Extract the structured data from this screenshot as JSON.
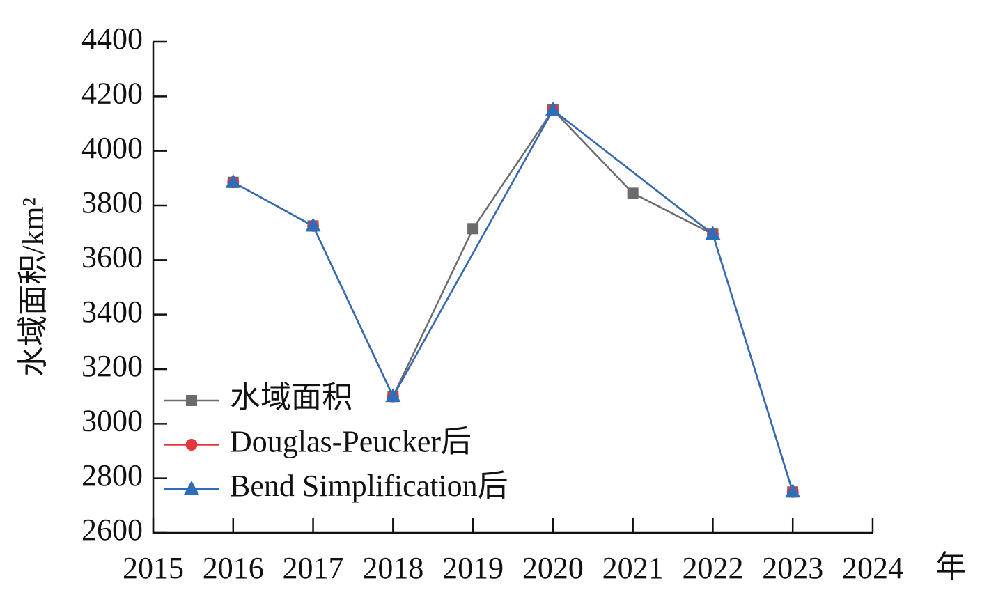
{
  "chart_data": {
    "type": "line",
    "y_label": "水域面积/km²",
    "x_label": "年",
    "xlim": [
      2015,
      2024
    ],
    "xticks": [
      2015,
      2016,
      2017,
      2018,
      2019,
      2020,
      2021,
      2022,
      2023,
      2024
    ],
    "ylim": [
      2600,
      4400
    ],
    "yticks": [
      2600,
      2800,
      3000,
      3200,
      3400,
      3600,
      3800,
      4000,
      4200,
      4400
    ],
    "legend": "left",
    "series": [
      {
        "name": "水域面积",
        "color": "#6b6b6b",
        "marker": "square",
        "x": [
          2016,
          2017,
          2018,
          2019,
          2020,
          2021,
          2022,
          2023
        ],
        "values": [
          3885,
          3725,
          3100,
          3715,
          4150,
          3845,
          3695,
          2750
        ]
      },
      {
        "name": "Douglas-Peucker后",
        "color": "#e0383c",
        "marker": "circle",
        "x": [
          2016,
          2017,
          2018,
          2020,
          2022,
          2023
        ],
        "values": [
          3885,
          3725,
          3100,
          4150,
          3695,
          2750
        ]
      },
      {
        "name": "Bend Simplification后",
        "color": "#2e6db8",
        "marker": "triangle",
        "x": [
          2016,
          2017,
          2018,
          2020,
          2022,
          2023
        ],
        "values": [
          3885,
          3725,
          3100,
          4150,
          3695,
          2750
        ]
      }
    ]
  }
}
